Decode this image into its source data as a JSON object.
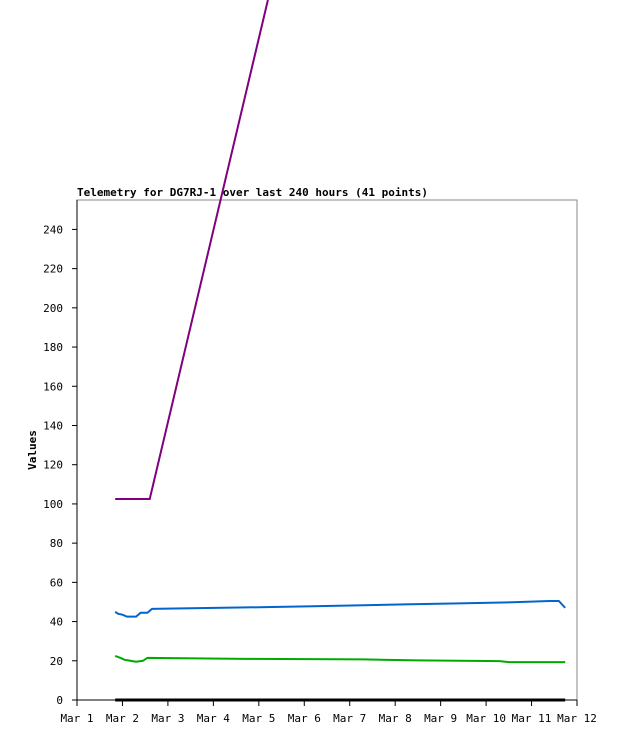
{
  "chart_data": {
    "type": "line",
    "title": "Telemetry for DG7RJ-1 over last 240 hours (41 points)",
    "xlabel": "",
    "ylabel": "Values",
    "xlim": [
      1,
      12
    ],
    "ylim": [
      0,
      255
    ],
    "x_unit": "day of March",
    "x_ticks": [
      1,
      2,
      3,
      4,
      5,
      6,
      7,
      8,
      9,
      10,
      11,
      12
    ],
    "x_tick_labels": [
      "Mar 1",
      "Mar 2",
      "Mar 3",
      "Mar 4",
      "Mar 5",
      "Mar 6",
      "Mar 7",
      "Mar 8",
      "Mar 9",
      "Mar 10",
      "Mar 11",
      "Mar 12"
    ],
    "y_ticks": [
      0,
      20,
      40,
      60,
      80,
      100,
      120,
      140,
      160,
      180,
      200,
      220,
      240
    ],
    "grid": false,
    "series": [
      {
        "color": "#800080",
        "points": [
          [
            1.84,
            102.5
          ],
          [
            2.6,
            102.5
          ],
          [
            5.2,
            357
          ]
        ]
      },
      {
        "color": "#0066cc",
        "points": [
          [
            1.84,
            45
          ],
          [
            1.9,
            44
          ],
          [
            2.0,
            43.5
          ],
          [
            2.1,
            42.5
          ],
          [
            2.3,
            42.5
          ],
          [
            2.4,
            44.5
          ],
          [
            2.55,
            44.5
          ],
          [
            2.65,
            46.5
          ],
          [
            3.5,
            46.8
          ],
          [
            5.0,
            47.3
          ],
          [
            6.2,
            47.8
          ],
          [
            7.3,
            48.3
          ],
          [
            8.2,
            48.8
          ],
          [
            9.4,
            49.3
          ],
          [
            10.5,
            49.8
          ],
          [
            11.4,
            50.5
          ],
          [
            11.6,
            50.5
          ],
          [
            11.7,
            48
          ],
          [
            11.74,
            47
          ]
        ]
      },
      {
        "color": "#00aa00",
        "points": [
          [
            1.84,
            22.5
          ],
          [
            1.95,
            21.5
          ],
          [
            2.05,
            20.5
          ],
          [
            2.3,
            19.5
          ],
          [
            2.45,
            20
          ],
          [
            2.55,
            21.5
          ],
          [
            4.7,
            21
          ],
          [
            7.3,
            20.7
          ],
          [
            8.5,
            20.2
          ],
          [
            10.3,
            19.8
          ],
          [
            10.5,
            19.3
          ],
          [
            11.74,
            19.3
          ]
        ]
      },
      {
        "color": "#000000",
        "points": [
          [
            1.84,
            0
          ],
          [
            11.74,
            0
          ]
        ]
      }
    ]
  }
}
